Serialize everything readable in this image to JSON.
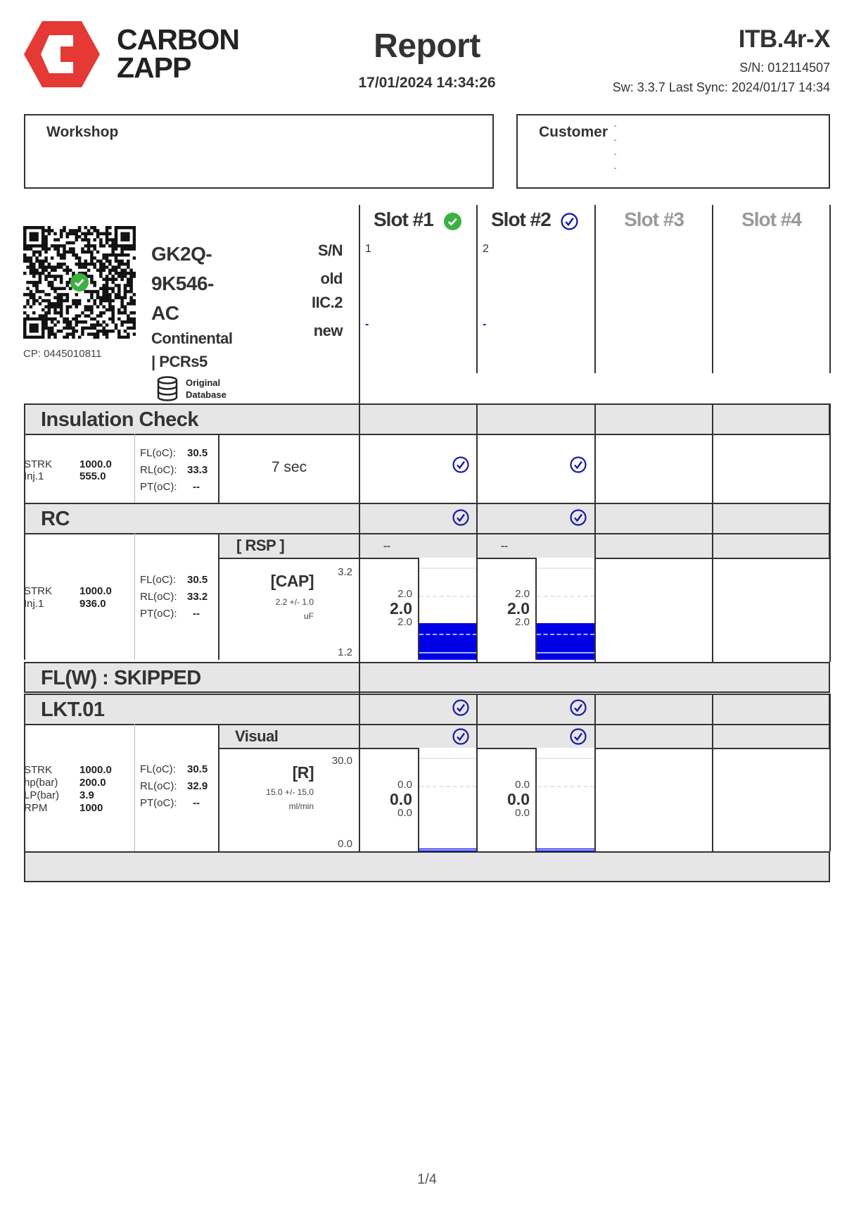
{
  "brand": {
    "line1": "CARBON",
    "line2": "ZAPP",
    "logo_color": "#e53935"
  },
  "header": {
    "title": "Report",
    "datetime": "17/01/2024 14:34:26",
    "device": "ITB.4r-X",
    "serial": "S/N: 012114507",
    "software": "Sw: 3.3.7 Last Sync: 2024/01/17 14:34"
  },
  "workshop": {
    "label": "Workshop"
  },
  "customer": {
    "label": "Customer",
    "lines": [
      "-",
      "-",
      "-",
      "-"
    ]
  },
  "injector": {
    "cp": "CP: 0445010811",
    "code_lines": [
      "GK2Q-",
      "9K546-",
      "AC"
    ],
    "maker_lines": [
      "Continental",
      "| PCRs5"
    ],
    "database": [
      "Original",
      "Database"
    ],
    "right_labels": [
      "S/N",
      "old",
      "IIC.2",
      "new"
    ],
    "qr_status": "verified"
  },
  "slots": [
    {
      "label": "Slot #1",
      "active": true,
      "icon": "check-filled-green",
      "sn": "1",
      "new": "-"
    },
    {
      "label": "Slot #2",
      "active": true,
      "icon": "check-circle-blue",
      "sn": "2",
      "new": "-"
    },
    {
      "label": "Slot #3",
      "active": false
    },
    {
      "label": "Slot #4",
      "active": false
    }
  ],
  "colors": {
    "check_blue": "#1a1aa8",
    "check_green": "#3cb043",
    "bar_fill": "#0000e6",
    "header_gray": "#e6e6e6"
  },
  "insulation": {
    "title": "Insulation Check",
    "params": [
      [
        "STRK",
        "1000.0"
      ],
      [
        "Inj.1",
        "555.0"
      ]
    ],
    "temps": [
      [
        "FL(oC):",
        "30.5"
      ],
      [
        "RL(oC):",
        "33.3"
      ],
      [
        "PT(oC):",
        "--"
      ]
    ],
    "duration": "7 sec",
    "slot_results": [
      "pass",
      "pass"
    ]
  },
  "rc": {
    "title": "RC",
    "slot_header_results": [
      "pass",
      "pass"
    ],
    "rsp_label": "[ RSP ]",
    "rsp_slot_values": [
      "--",
      "--"
    ],
    "params": [
      [
        "STRK",
        "1000.0"
      ],
      [
        "Inj.1",
        "936.0"
      ]
    ],
    "temps": [
      [
        "FL(oC):",
        "30.5"
      ],
      [
        "RL(oC):",
        "33.2"
      ],
      [
        "PT(oC):",
        "--"
      ]
    ],
    "measure": {
      "name": "[CAP]",
      "spec": "2.2 +/- 1.0",
      "unit": "uF",
      "max": "3.2",
      "min": "1.2"
    },
    "slot_values": [
      {
        "top": "2.0",
        "main": "2.0",
        "bottom": "2.0",
        "value": 2.0
      },
      {
        "top": "2.0",
        "main": "2.0",
        "bottom": "2.0",
        "value": 2.0
      }
    ]
  },
  "flw": {
    "title": "FL(W) : SKIPPED"
  },
  "lkt": {
    "title": "LKT.01",
    "slot_header_results": [
      "pass",
      "pass"
    ],
    "visual_label": "Visual",
    "visual_results": [
      "pass",
      "pass"
    ],
    "params": [
      [
        "STRK",
        "1000.0"
      ],
      [
        "hp(bar)",
        "200.0"
      ],
      [
        "LP(bar)",
        "3.9"
      ],
      [
        "RPM",
        "1000"
      ]
    ],
    "temps": [
      [
        "FL(oC):",
        "30.5"
      ],
      [
        "RL(oC):",
        "32.9"
      ],
      [
        "PT(oC):",
        "--"
      ]
    ],
    "measure": {
      "name": "[R]",
      "spec": "15.0 +/- 15.0",
      "unit": "ml/min",
      "max": "30.0",
      "min": "0.0"
    },
    "slot_values": [
      {
        "top": "0.0",
        "main": "0.0",
        "bottom": "0.0",
        "value": 0.0
      },
      {
        "top": "0.0",
        "main": "0.0",
        "bottom": "0.0",
        "value": 0.0
      }
    ]
  },
  "footer": {
    "page": "1/4"
  }
}
